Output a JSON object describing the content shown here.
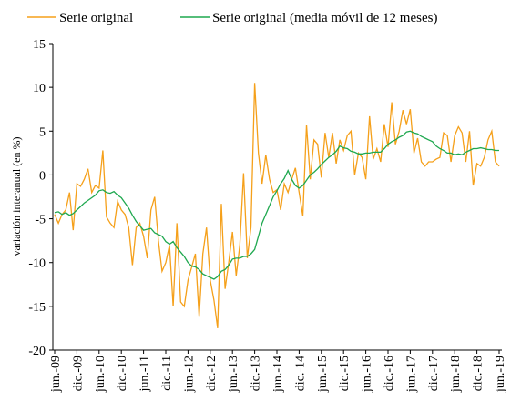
{
  "chart_data": {
    "type": "line",
    "y_label": "variación interanual  (en %)",
    "categories": [
      "jun.-09",
      null,
      null,
      null,
      null,
      null,
      "dic.-09",
      null,
      null,
      null,
      null,
      null,
      "jun.-10",
      null,
      null,
      null,
      null,
      null,
      "dic.-10",
      null,
      null,
      null,
      null,
      null,
      "jun.-11",
      null,
      null,
      null,
      null,
      null,
      "dic.-11",
      null,
      null,
      null,
      null,
      null,
      "jun.-12",
      null,
      null,
      null,
      null,
      null,
      "dic.-12",
      null,
      null,
      null,
      null,
      null,
      "jun.-13",
      null,
      null,
      null,
      null,
      null,
      "dic.-13",
      null,
      null,
      null,
      null,
      null,
      "jun.-14",
      null,
      null,
      null,
      null,
      null,
      "dic.-14",
      null,
      null,
      null,
      null,
      null,
      "jun.-15",
      null,
      null,
      null,
      null,
      null,
      "dic.-15",
      null,
      null,
      null,
      null,
      null,
      "jun.-16",
      null,
      null,
      null,
      null,
      null,
      "dic.-16",
      null,
      null,
      null,
      null,
      null,
      "jun.-17",
      null,
      null,
      null,
      null,
      null,
      "dic.-17",
      null,
      null,
      null,
      null,
      null,
      "jun.-18",
      null,
      null,
      null,
      null,
      null,
      "dic.-18",
      null,
      null,
      null,
      null,
      null,
      "jun.-19"
    ],
    "series": [
      {
        "name": "Serie original",
        "color": "#f5a01a",
        "values": [
          -4.5,
          -5.5,
          -4.5,
          -4,
          -2,
          -6.3,
          -1,
          -1.3,
          -0.5,
          0.7,
          -2,
          -1.2,
          -1.5,
          2.8,
          -4.8,
          -5.5,
          -6,
          -3,
          -4,
          -4.5,
          -6,
          -10.3,
          -6,
          -5.5,
          -7,
          -9.5,
          -4,
          -2.5,
          -7.5,
          -11,
          -10,
          -8,
          -15,
          -5.5,
          -14.5,
          -15,
          -12,
          -10.5,
          -9,
          -16.2,
          -9,
          -6,
          -12,
          -14.3,
          -17.5,
          -3.3,
          -13,
          -10,
          -6.5,
          -11.5,
          -8,
          0.2,
          -9.5,
          -6,
          10.5,
          2.5,
          -1,
          2.3,
          -0.5,
          -2,
          -1.7,
          -4,
          -1,
          -2,
          -0.5,
          0.8,
          -2,
          -4.7,
          5.7,
          -0.5,
          4,
          3.5,
          -0.3,
          4.8,
          2,
          4.8,
          1.3,
          4,
          2.8,
          4.5,
          5,
          0,
          2.5,
          2,
          -0.5,
          6.7,
          1.8,
          3,
          1.5,
          5.8,
          3.2,
          8.3,
          3.5,
          5,
          7.4,
          5.8,
          7.5,
          2.5,
          4.2,
          1.5,
          1,
          1.5,
          1.5,
          1.8,
          2,
          4.8,
          4.5,
          1.5,
          4.5,
          5.5,
          4.8,
          1.5,
          5,
          -1.2,
          1.3,
          1,
          2,
          4,
          5,
          1.5,
          1
        ]
      },
      {
        "name": "Serie original (media móvil de 12 meses)",
        "color": "#1fa84f",
        "values": [
          -4.3,
          -4.2,
          -4.5,
          -4.3,
          -4.6,
          -4.4,
          -4,
          -3.6,
          -3.2,
          -2.9,
          -2.6,
          -2.3,
          -1.8,
          -1.7,
          -2,
          -2.1,
          -1.9,
          -2.3,
          -2.6,
          -3.2,
          -3.8,
          -4.6,
          -5.3,
          -5.8,
          -6.3,
          -6.2,
          -6.1,
          -6.6,
          -6.8,
          -7,
          -7.6,
          -7.9,
          -7.6,
          -8.3,
          -8.8,
          -9.3,
          -10,
          -10.4,
          -10.5,
          -10.8,
          -11.3,
          -11.5,
          -11.7,
          -11.9,
          -11.6,
          -11,
          -10.8,
          -10.3,
          -9.6,
          -9.5,
          -9.5,
          -9.3,
          -9.3,
          -9,
          -8.5,
          -7,
          -5.5,
          -4.5,
          -3.5,
          -2.5,
          -1.8,
          -1,
          -0.4,
          0.5,
          -0.5,
          -1.2,
          -1.5,
          -1.2,
          -0.6,
          0,
          0.3,
          0.7,
          1.2,
          1.6,
          2,
          2.3,
          2.7,
          3.3,
          3.1,
          3,
          2.7,
          2.6,
          2.4,
          2.4,
          2.5,
          2.5,
          2.6,
          2.6,
          2.6,
          3,
          3.5,
          3.8,
          4,
          4.3,
          4.5,
          4.9,
          5,
          4.8,
          4.7,
          4.4,
          4.2,
          4,
          3.8,
          3.3,
          3,
          2.8,
          2.5,
          2.5,
          2.3,
          2.4,
          2.3,
          2.6,
          2.8,
          3,
          3,
          3.1,
          3,
          2.9,
          2.9,
          2.8,
          2.8
        ]
      }
    ],
    "ylim": [
      -20,
      15
    ],
    "yticks": [
      -20,
      -15,
      -10,
      -5,
      0,
      5,
      10,
      15
    ],
    "grid": false,
    "legend": "top"
  }
}
